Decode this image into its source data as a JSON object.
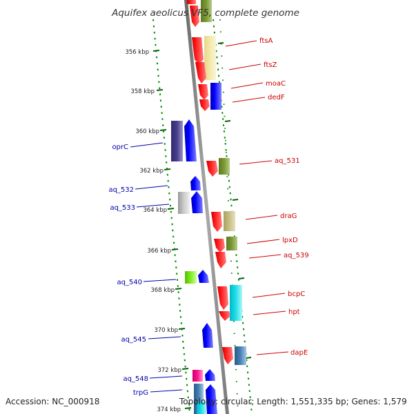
{
  "title": "Aquifex aeolicus VF5, complete genome",
  "accession": "Accession: NC_000918",
  "summary": "Topology: circular; Length: 1,551,335 bp; Genes: 1,579",
  "ticks": [
    "356 kbp",
    "358 kbp",
    "360 kbp",
    "362 kbp",
    "364 kbp",
    "366 kbp",
    "368 kbp",
    "370 kbp",
    "372 kbp",
    "374 kbp"
  ],
  "genes_right": [
    "ftsA",
    "ftsZ",
    "moaC",
    "dedF",
    "aq_531",
    "draG",
    "lpxD",
    "aq_539",
    "bcpC",
    "hpt",
    "dapE"
  ],
  "genes_left": [
    "oprC",
    "aq_532",
    "aq_533",
    "aq_540",
    "aq_545",
    "aq_548",
    "trpG"
  ],
  "colors": {
    "red": "#ff0000",
    "blue": "#0000ff",
    "label_right": "#cc0000",
    "label_left": "#0000aa",
    "backbone": "#888888",
    "dotted": "#008800"
  }
}
